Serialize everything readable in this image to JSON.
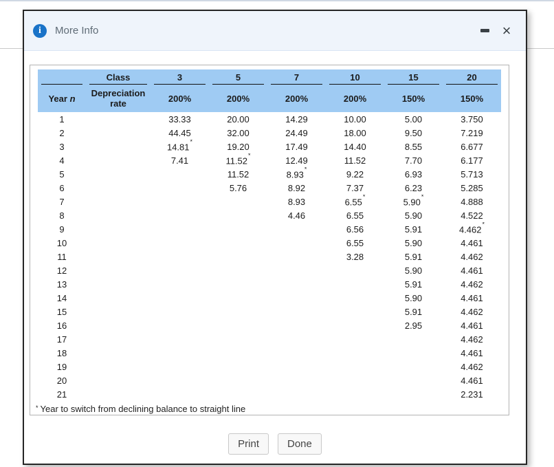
{
  "dialog": {
    "title": "More Info",
    "titlebar": {
      "info_glyph": "i",
      "close_glyph": "×"
    },
    "footer_buttons": {
      "print": "Print",
      "done": "Done"
    }
  },
  "table": {
    "header": {
      "class_label": "Class",
      "classes": [
        "3",
        "5",
        "7",
        "10",
        "15",
        "20"
      ],
      "year_label": "Year",
      "year_symbol": "n",
      "rate_label": "Depreciation rate",
      "rates": [
        "200%",
        "200%",
        "200%",
        "200%",
        "150%",
        "150%"
      ]
    },
    "rows": [
      {
        "year": "1",
        "values": [
          "33.33",
          "20.00",
          "14.29",
          "10.00",
          "5.00",
          "3.750"
        ]
      },
      {
        "year": "2",
        "values": [
          "44.45",
          "32.00",
          "24.49",
          "18.00",
          "9.50",
          "7.219"
        ]
      },
      {
        "year": "3",
        "values": [
          "14.81*",
          "19.20",
          "17.49",
          "14.40",
          "8.55",
          "6.677"
        ]
      },
      {
        "year": "4",
        "values": [
          "7.41",
          "11.52*",
          "12.49",
          "11.52",
          "7.70",
          "6.177"
        ]
      },
      {
        "year": "5",
        "values": [
          "",
          "11.52",
          "8.93*",
          "9.22",
          "6.93",
          "5.713"
        ]
      },
      {
        "year": "6",
        "values": [
          "",
          "5.76",
          "8.92",
          "7.37",
          "6.23",
          "5.285"
        ]
      },
      {
        "year": "7",
        "values": [
          "",
          "",
          "8.93",
          "6.55*",
          "5.90*",
          "4.888"
        ]
      },
      {
        "year": "8",
        "values": [
          "",
          "",
          "4.46",
          "6.55",
          "5.90",
          "4.522"
        ]
      },
      {
        "year": "9",
        "values": [
          "",
          "",
          "",
          "6.56",
          "5.91",
          "4.462*"
        ]
      },
      {
        "year": "10",
        "values": [
          "",
          "",
          "",
          "6.55",
          "5.90",
          "4.461"
        ]
      },
      {
        "year": "11",
        "values": [
          "",
          "",
          "",
          "3.28",
          "5.91",
          "4.462"
        ]
      },
      {
        "year": "12",
        "values": [
          "",
          "",
          "",
          "",
          "5.90",
          "4.461"
        ]
      },
      {
        "year": "13",
        "values": [
          "",
          "",
          "",
          "",
          "5.91",
          "4.462"
        ]
      },
      {
        "year": "14",
        "values": [
          "",
          "",
          "",
          "",
          "5.90",
          "4.461"
        ]
      },
      {
        "year": "15",
        "values": [
          "",
          "",
          "",
          "",
          "5.91",
          "4.462"
        ]
      },
      {
        "year": "16",
        "values": [
          "",
          "",
          "",
          "",
          "2.95",
          "4.461"
        ]
      },
      {
        "year": "17",
        "values": [
          "",
          "",
          "",
          "",
          "",
          "4.462"
        ]
      },
      {
        "year": "18",
        "values": [
          "",
          "",
          "",
          "",
          "",
          "4.461"
        ]
      },
      {
        "year": "19",
        "values": [
          "",
          "",
          "",
          "",
          "",
          "4.462"
        ]
      },
      {
        "year": "20",
        "values": [
          "",
          "",
          "",
          "",
          "",
          "4.461"
        ]
      },
      {
        "year": "21",
        "values": [
          "",
          "",
          "",
          "",
          "",
          "2.231"
        ]
      }
    ],
    "footnote_marker": "*",
    "footnote": "Year to switch from declining balance to straight line"
  },
  "colors": {
    "header_blue": "#9fcbf3",
    "titlebar_bg": "#eff4fb",
    "info_icon_blue": "#1a73c8",
    "dialog_border": "#262626"
  }
}
